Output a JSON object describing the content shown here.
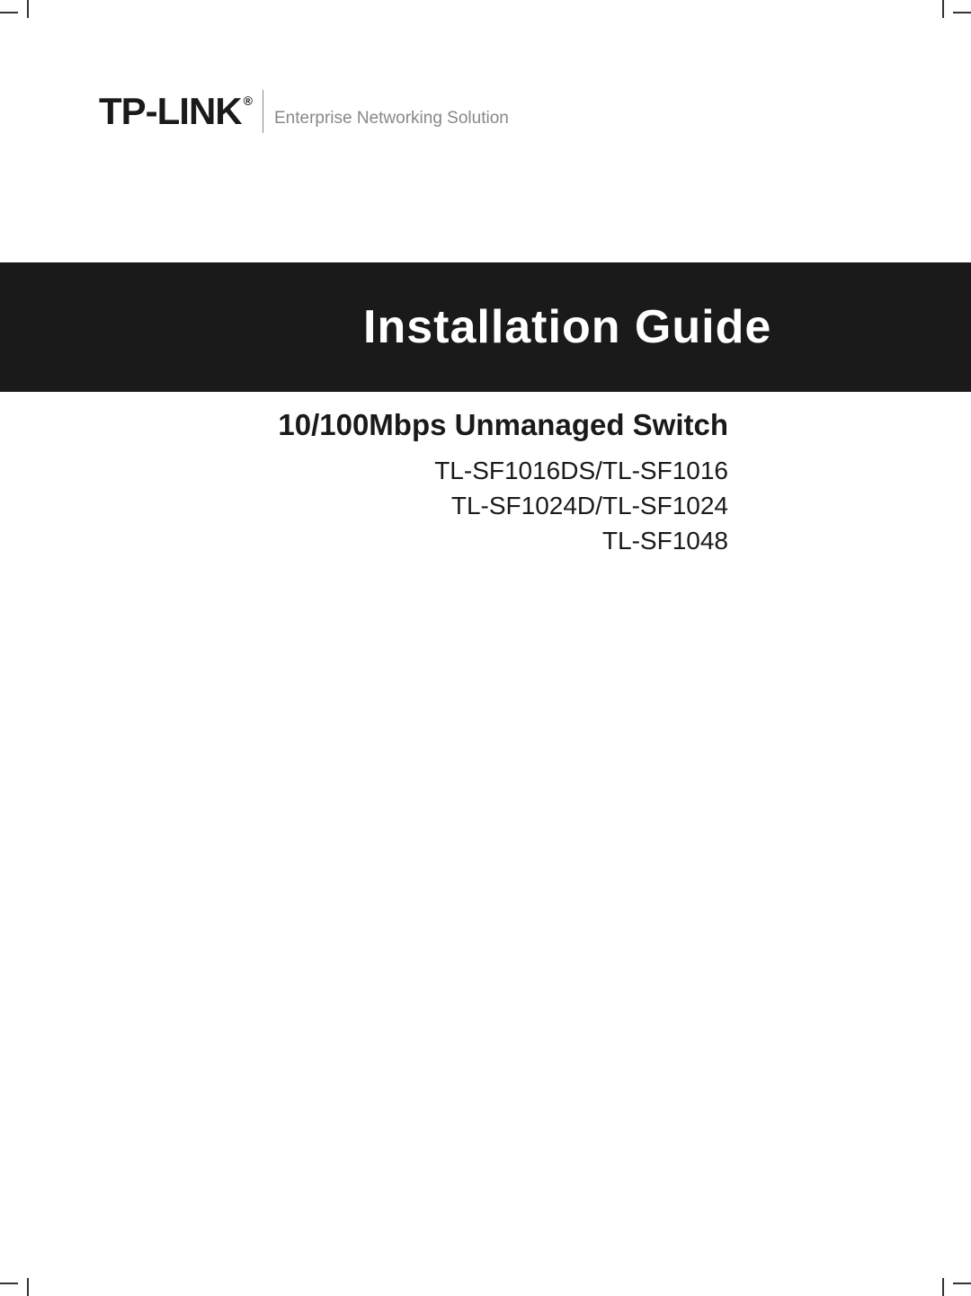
{
  "brand": {
    "name": "TP-LINK",
    "registered_symbol": "®",
    "tagline": "Enterprise Networking Solution"
  },
  "title": "Installation Guide",
  "subtitle": "10/100Mbps Unmanaged Switch",
  "models": [
    "TL-SF1016DS/TL-SF1016",
    "TL-SF1024D/TL-SF1024",
    "TL-SF1048"
  ],
  "colors": {
    "background": "#ffffff",
    "band": "#1a1a1a",
    "text_dark": "#1a1a1a",
    "text_light": "#ffffff",
    "tagline_gray": "#888888"
  }
}
